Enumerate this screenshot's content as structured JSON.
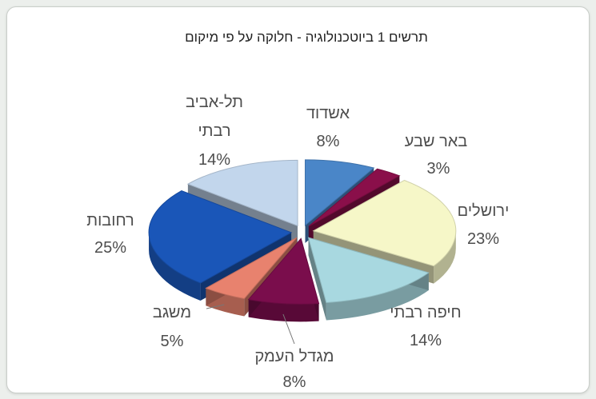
{
  "chart_data": {
    "type": "pie",
    "title": "תרשים 1 ביוטכנולוגיה - חלוקה על פי מיקום",
    "slices": [
      {
        "label": "אשדוד",
        "value": 8,
        "value_label": "8%",
        "color": "#4a86c8"
      },
      {
        "label": "באר שבע",
        "value": 3,
        "value_label": "3%",
        "color": "#8a0f4a"
      },
      {
        "label": "ירושלים",
        "value": 23,
        "value_label": "23%",
        "color": "#f6f7c8"
      },
      {
        "label": "חיפה רבתי",
        "value": 14,
        "value_label": "14%",
        "color": "#a8d8e0"
      },
      {
        "label": "מגדל העמק",
        "value": 8,
        "value_label": "8%",
        "color": "#7a0d4c"
      },
      {
        "label": "משגב",
        "value": 5,
        "value_label": "5%",
        "color": "#e8826e"
      },
      {
        "label": "רחובות",
        "value": 25,
        "value_label": "25%",
        "color": "#1a56b8"
      },
      {
        "label": "תל-אביב רבתי",
        "value": 14,
        "value_label": "14%",
        "color": "#c2d6ec"
      }
    ],
    "legend": "none",
    "style": "3d-exploded"
  }
}
